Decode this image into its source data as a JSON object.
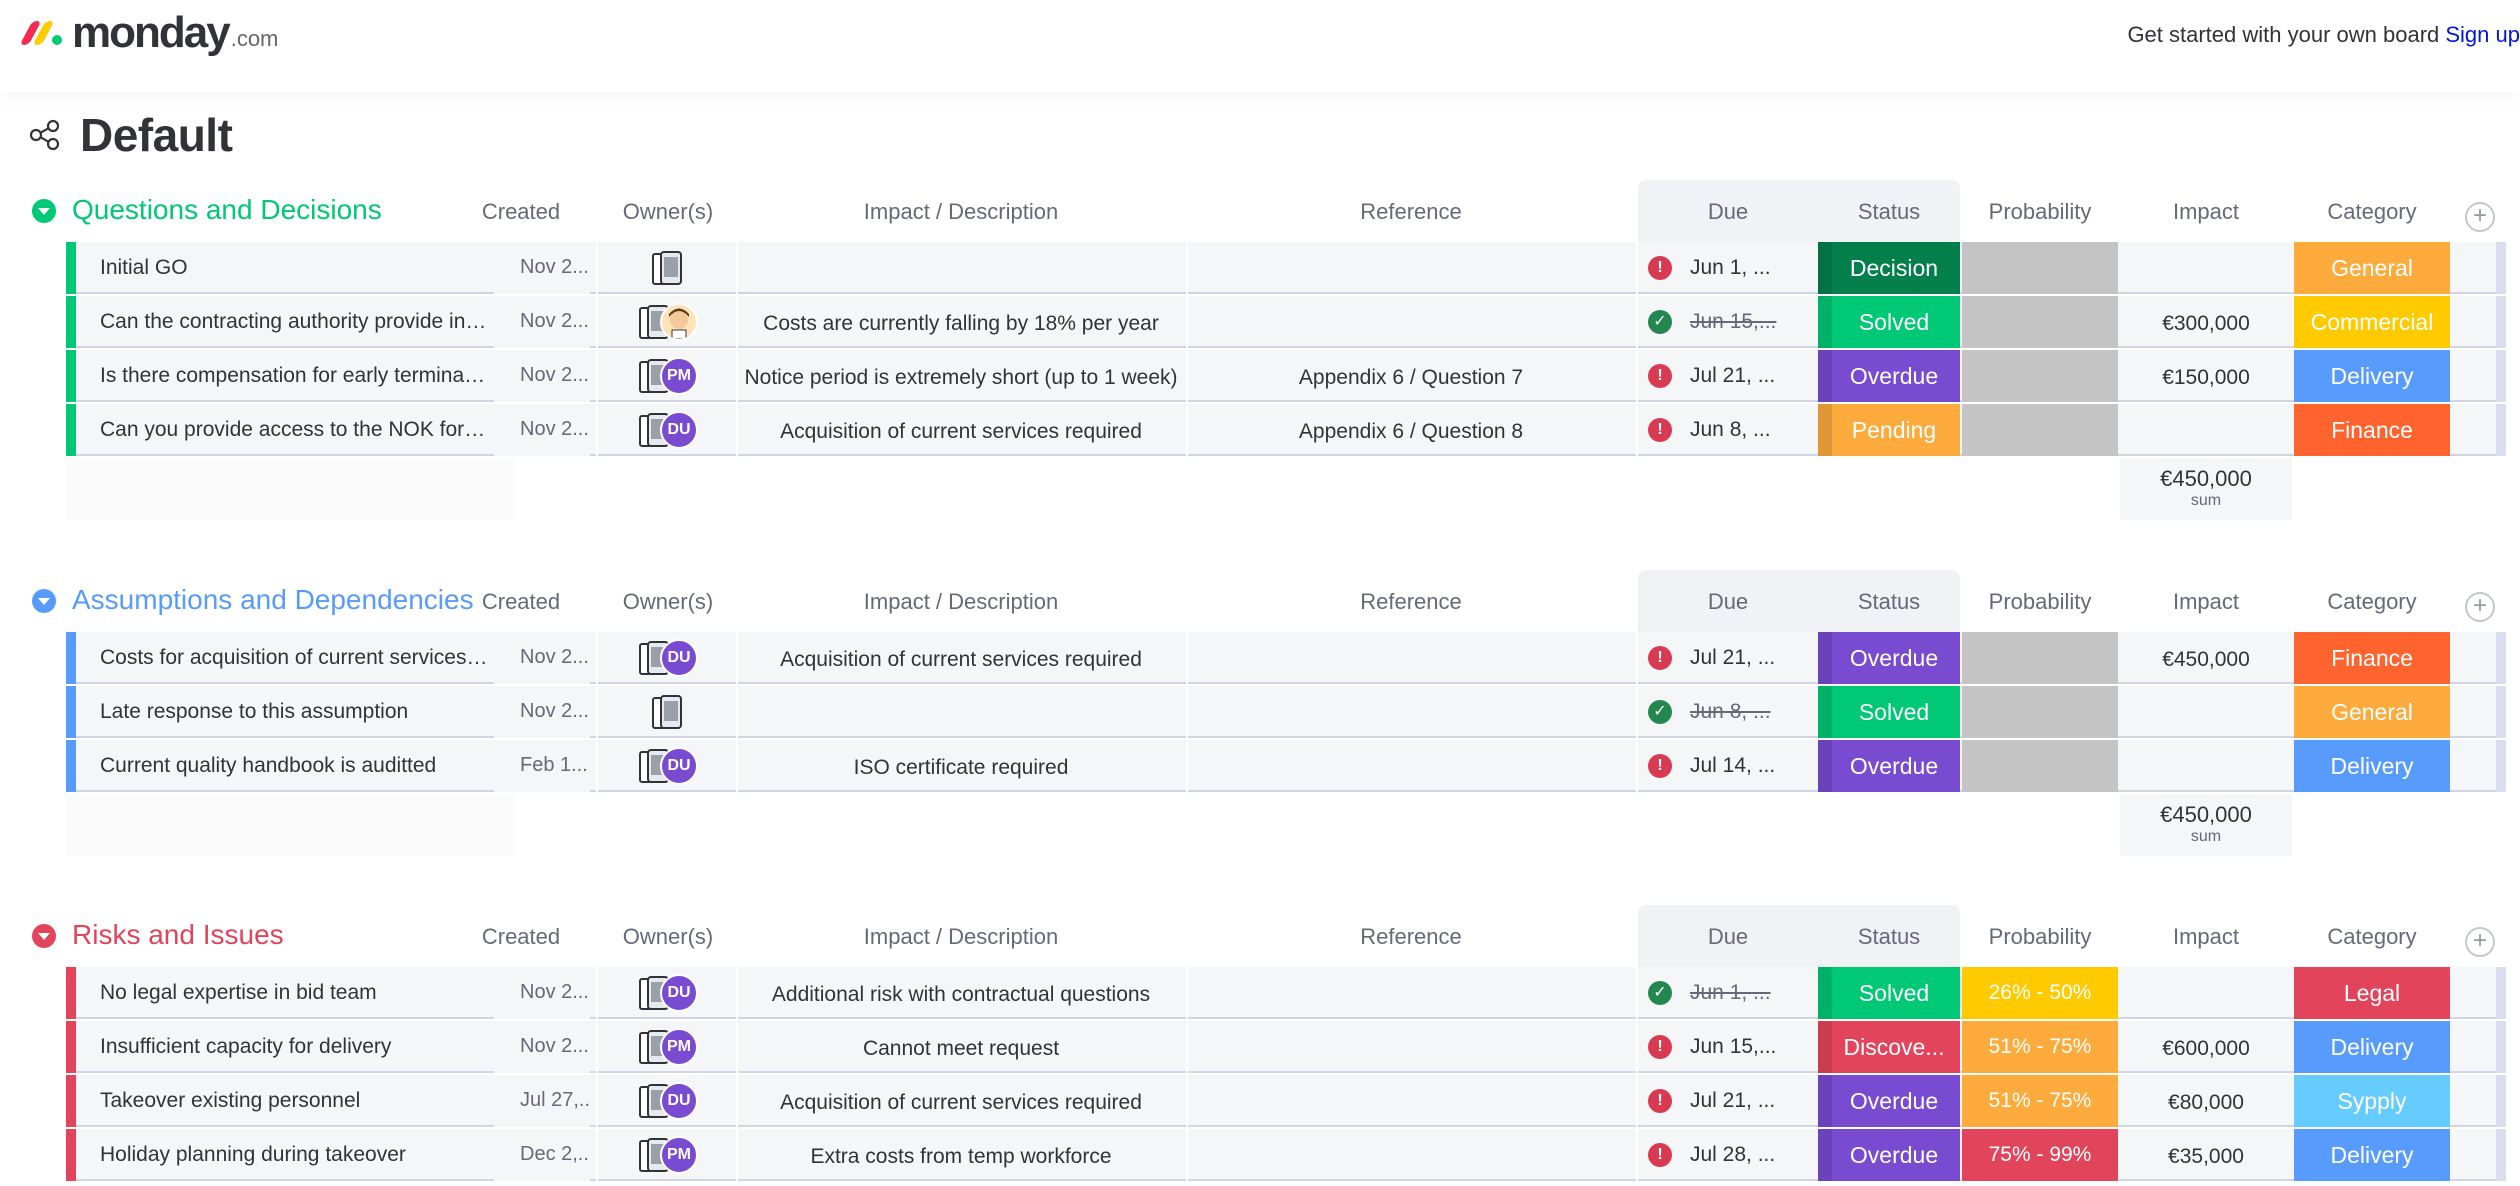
{
  "topbar": {
    "logo_text": "monday",
    "logo_suffix": ".com",
    "cta_text": "Get started with your own board ",
    "cta_link": "Sign up",
    "logo_colors": [
      "#f62b54",
      "#ffcc00",
      "#00ca72"
    ]
  },
  "board": {
    "title": "Default",
    "share_icon": "share-icon"
  },
  "columns": {
    "created": "Created",
    "owners": "Owner(s)",
    "description": "Impact / Description",
    "reference": "Reference",
    "due": "Due",
    "status": "Status",
    "probability": "Probability",
    "impact": "Impact",
    "category": "Category"
  },
  "colors": {
    "green": "#00c875",
    "blue": "#579bfc",
    "red": "#e2445c",
    "decision": "#037f4c",
    "solved": "#00c875",
    "overdue": "#784bd1",
    "pending": "#fdab3d",
    "discovered": "#e2445c",
    "general": "#fdab3d",
    "commercial": "#ffcb00",
    "delivery": "#579bfc",
    "finance": "#ff642e",
    "legal": "#e2445c",
    "sypply": "#66ccff",
    "prob_empty": "#c4c4c4",
    "prob_low": "#ffcb00",
    "prob_mid": "#fdab3d",
    "prob_high": "#e2445c"
  },
  "groups": [
    {
      "title": "Questions and Decisions",
      "color": "#00c875",
      "rows": [
        {
          "name": "Initial GO",
          "created": "Nov 2...",
          "owners": [],
          "description": "",
          "reference": "",
          "due": "Jun 1, ...",
          "due_state": "alert",
          "status": "Decision",
          "status_color": "#037f4c",
          "probability": "",
          "prob_color": "#c4c4c4",
          "impact": "",
          "category": "General",
          "cat_color": "#fdab3d"
        },
        {
          "name": "Can the contracting authority provide insi...",
          "created": "Nov 2...",
          "owners": [
            "face"
          ],
          "description": "Costs are currently falling by 18% per year",
          "reference": "",
          "due": "Jun 15,...",
          "due_state": "done",
          "status": "Solved",
          "status_color": "#00c875",
          "probability": "",
          "prob_color": "#c4c4c4",
          "impact": "€300,000",
          "category": "Commercial",
          "cat_color": "#ffcb00"
        },
        {
          "name": "Is there compensation for early terminatio...",
          "created": "Nov 2...",
          "owners": [
            "PM"
          ],
          "description": "Notice period is extremely short (up to 1 week)",
          "reference": "Appendix 6 / Question 7",
          "due": "Jul 21, ...",
          "due_state": "alert",
          "status": "Overdue",
          "status_color": "#784bd1",
          "probability": "",
          "prob_color": "#c4c4c4",
          "impact": "€150,000",
          "category": "Delivery",
          "cat_color": "#579bfc"
        },
        {
          "name": "Can you provide access to the NOK for c...",
          "created": "Nov 2...",
          "owners": [
            "DU"
          ],
          "description": "Acquisition of current services required",
          "reference": "Appendix 6 / Question 8",
          "due": "Jun 8, ...",
          "due_state": "alert",
          "status": "Pending",
          "status_color": "#fdab3d",
          "probability": "",
          "prob_color": "#c4c4c4",
          "impact": "",
          "category": "Finance",
          "cat_color": "#ff642e"
        }
      ],
      "sum": "€450,000",
      "sum_label": "sum"
    },
    {
      "title": "Assumptions and Dependencies",
      "color": "#579bfc",
      "rows": [
        {
          "name": "Costs for acquisition of current services a...",
          "created": "Nov 2...",
          "owners": [
            "DU"
          ],
          "description": "Acquisition of current services required",
          "reference": "",
          "due": "Jul 21, ...",
          "due_state": "alert",
          "status": "Overdue",
          "status_color": "#784bd1",
          "probability": "",
          "prob_color": "#c4c4c4",
          "impact": "€450,000",
          "category": "Finance",
          "cat_color": "#ff642e"
        },
        {
          "name": "Late response to this assumption",
          "created": "Nov 2...",
          "owners": [],
          "description": "",
          "reference": "",
          "due": "Jun 8, ...",
          "due_state": "done",
          "status": "Solved",
          "status_color": "#00c875",
          "probability": "",
          "prob_color": "#c4c4c4",
          "impact": "",
          "category": "General",
          "cat_color": "#fdab3d"
        },
        {
          "name": "Current quality handbook is auditted",
          "created": "Feb 1...",
          "owners": [
            "DU"
          ],
          "description": "ISO certificate required",
          "reference": "",
          "due": "Jul 14, ...",
          "due_state": "alert",
          "status": "Overdue",
          "status_color": "#784bd1",
          "probability": "",
          "prob_color": "#c4c4c4",
          "impact": "",
          "category": "Delivery",
          "cat_color": "#579bfc"
        }
      ],
      "sum": "€450,000",
      "sum_label": "sum"
    },
    {
      "title": "Risks and Issues",
      "color": "#e2445c",
      "rows": [
        {
          "name": "No legal expertise in bid team",
          "created": "Nov 2...",
          "owners": [
            "DU"
          ],
          "description": "Additional risk with contractual questions",
          "reference": "",
          "due": "Jun 1, ...",
          "due_state": "done",
          "status": "Solved",
          "status_color": "#00c875",
          "probability": "26% - 50%",
          "prob_color": "#ffcb00",
          "impact": "",
          "category": "Legal",
          "cat_color": "#e2445c"
        },
        {
          "name": "Insufficient capacity for delivery",
          "created": "Nov 2...",
          "owners": [
            "PM"
          ],
          "description": "Cannot meet request",
          "reference": "",
          "due": "Jun 15,...",
          "due_state": "alert",
          "status": "Discove...",
          "status_color": "#e2445c",
          "probability": "51% - 75%",
          "prob_color": "#fdab3d",
          "impact": "€600,000",
          "category": "Delivery",
          "cat_color": "#579bfc"
        },
        {
          "name": "Takeover existing personnel",
          "created": "Jul 27,...",
          "owners": [
            "DU"
          ],
          "description": "Acquisition of current services required",
          "reference": "",
          "due": "Jul 21, ...",
          "due_state": "alert",
          "status": "Overdue",
          "status_color": "#784bd1",
          "probability": "51% - 75%",
          "prob_color": "#fdab3d",
          "impact": "€80,000",
          "category": "Sypply",
          "cat_color": "#66ccff"
        },
        {
          "name": "Holiday planning during takeover",
          "created": "Dec 2,...",
          "owners": [
            "PM"
          ],
          "description": "Extra costs from temp workforce",
          "reference": "",
          "due": "Jul 28, ...",
          "due_state": "alert",
          "status": "Overdue",
          "status_color": "#784bd1",
          "probability": "75% - 99%",
          "prob_color": "#e2445c",
          "impact": "€35,000",
          "category": "Delivery",
          "cat_color": "#579bfc"
        }
      ]
    }
  ]
}
